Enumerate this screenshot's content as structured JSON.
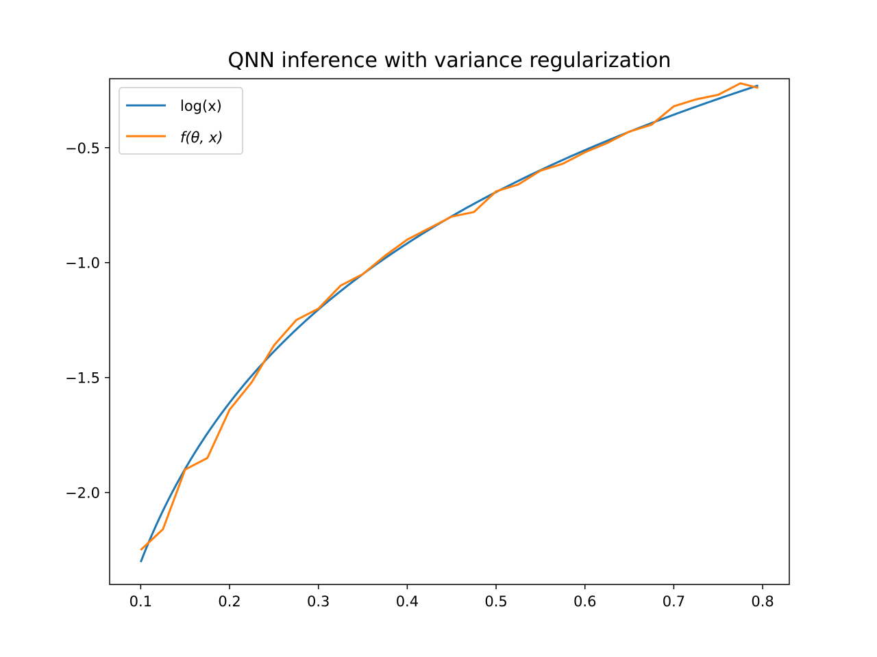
{
  "chart_data": {
    "type": "line",
    "title": "QNN inference with variance regularization",
    "xlabel": "",
    "ylabel": "",
    "xlim": [
      0.065,
      0.83
    ],
    "ylim": [
      -2.4,
      -0.2
    ],
    "xticks": [
      0.1,
      0.2,
      0.3,
      0.4,
      0.5,
      0.6,
      0.7,
      0.8
    ],
    "xtick_labels": [
      "0.1",
      "0.2",
      "0.3",
      "0.4",
      "0.5",
      "0.6",
      "0.7",
      "0.8"
    ],
    "yticks": [
      -0.5,
      -1.0,
      -1.5,
      -2.0
    ],
    "ytick_labels": [
      "−0.5",
      "−1.0",
      "−1.5",
      "−2.0"
    ],
    "grid": false,
    "legend_position": "top-left",
    "series": [
      {
        "name": "log(x)",
        "color": "#1f77b4",
        "function": "log",
        "x_range": [
          0.1,
          0.795
        ]
      },
      {
        "name": "f(θ, x)",
        "color": "#ff7f0e",
        "x": [
          0.1,
          0.125,
          0.15,
          0.175,
          0.2,
          0.225,
          0.25,
          0.275,
          0.3,
          0.325,
          0.35,
          0.375,
          0.4,
          0.425,
          0.45,
          0.475,
          0.5,
          0.525,
          0.55,
          0.575,
          0.6,
          0.625,
          0.65,
          0.675,
          0.7,
          0.725,
          0.75,
          0.775,
          0.795
        ],
        "y": [
          -2.25,
          -2.16,
          -1.9,
          -1.85,
          -1.64,
          -1.52,
          -1.36,
          -1.25,
          -1.2,
          -1.1,
          -1.05,
          -0.97,
          -0.9,
          -0.85,
          -0.8,
          -0.78,
          -0.69,
          -0.66,
          -0.6,
          -0.57,
          -0.52,
          -0.48,
          -0.43,
          -0.4,
          -0.32,
          -0.29,
          -0.27,
          -0.22,
          -0.24
        ]
      }
    ]
  },
  "legend": {
    "items": [
      {
        "label": "log(x)",
        "italic_parts": [
          "x"
        ]
      },
      {
        "label": "f(θ, x)",
        "italic_parts": [
          "f",
          "θ",
          "x"
        ]
      }
    ]
  }
}
